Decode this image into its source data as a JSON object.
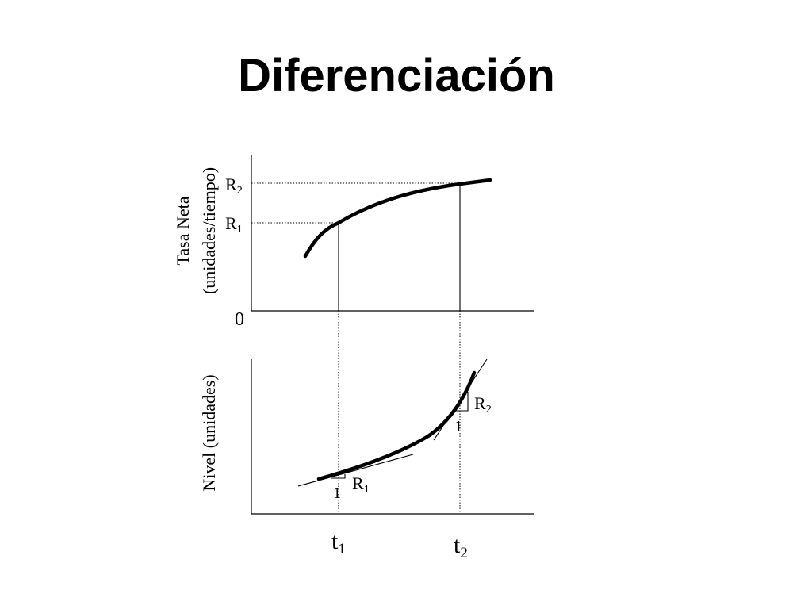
{
  "title": "Diferenciación",
  "top_plot": {
    "ylabel_line1": "Tasa Neta",
    "ylabel_line2": "(unidades/tiempo)",
    "zero_label": "0",
    "r2_base": "R",
    "r2_sub": "2",
    "r1_base": "R",
    "r1_sub": "1"
  },
  "bottom_plot": {
    "ylabel": "Nivel (unidades)",
    "slope1_r_base": "R",
    "slope1_r_sub": "1",
    "slope1_run": "1",
    "slope2_r_base": "R",
    "slope2_r_sub": "2",
    "slope2_run": "1"
  },
  "x_axis": {
    "t1_base": "t",
    "t1_sub": "1",
    "t2_base": "t",
    "t2_sub": "2"
  }
}
